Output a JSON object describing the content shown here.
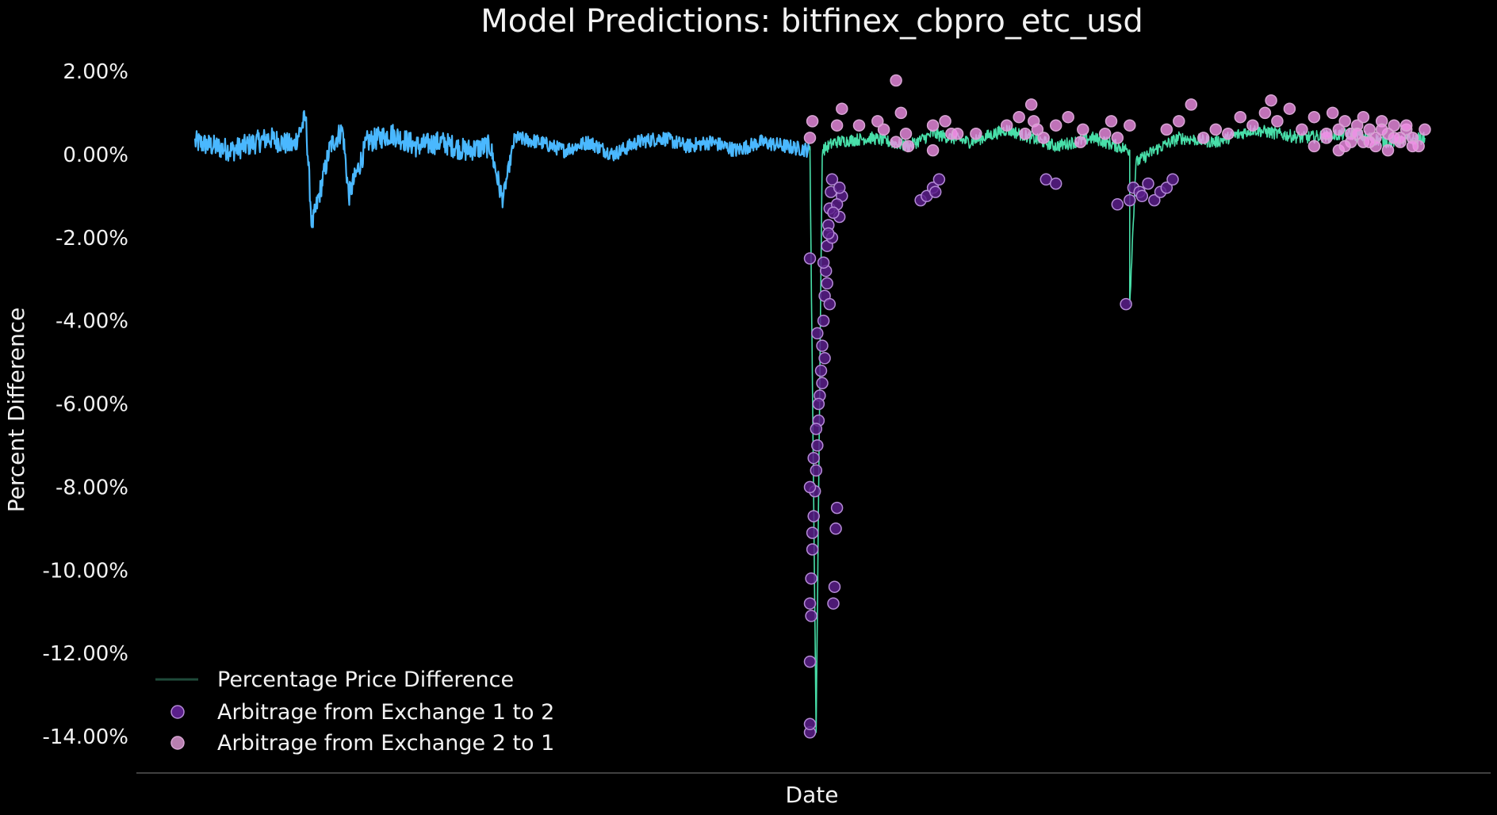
{
  "chart_data": {
    "type": "line",
    "title": "Model Predictions: bitfinex_cbpro_etc_usd",
    "xlabel": "Date",
    "ylabel": "Percent Difference",
    "ylim": [
      -14.6,
      2.3
    ],
    "yticks": [
      2,
      0,
      -2,
      -4,
      -6,
      -8,
      -10,
      -12,
      -14
    ],
    "ytick_labels": [
      "2.00%",
      "0.00%",
      "-2.00%",
      "-4.00%",
      "-6.00%",
      "-8.00%",
      "-10.00%",
      "-12.00%",
      "-14.00%"
    ],
    "grid": false,
    "legend_position": "lower-left",
    "colors": {
      "background": "#000000",
      "history_line": "#4ab8ff",
      "prediction_line": "#48dfa9",
      "arb_1_to_2": "#5a1f8a",
      "arb_2_to_1": "#f08fe6",
      "marker_edge": "#b48ad6"
    },
    "series": [
      {
        "name": "Percentage Price Difference",
        "type": "line",
        "segments": [
          {
            "color": "#4ab8ff",
            "x": [
              0,
              0.03,
              0.06,
              0.08,
              0.09,
              0.095,
              0.11,
              0.12,
              0.125,
              0.14,
              0.16,
              0.18,
              0.2,
              0.22,
              0.24,
              0.25,
              0.26,
              0.28,
              0.3,
              0.32,
              0.34,
              0.36,
              0.38,
              0.4,
              0.42,
              0.44,
              0.46,
              0.48,
              0.5
            ],
            "y": [
              0.3,
              0.1,
              0.4,
              0.2,
              0.9,
              -1.75,
              0.2,
              0.6,
              -1.0,
              0.3,
              0.5,
              0.2,
              0.3,
              0.1,
              0.2,
              -1.1,
              0.4,
              0.3,
              0.1,
              0.3,
              0.0,
              0.3,
              0.4,
              0.2,
              0.3,
              0.1,
              0.3,
              0.2,
              0.1
            ]
          },
          {
            "color": "#48dfa9",
            "x": [
              0.5,
              0.505,
              0.51,
              0.52,
              0.55,
              0.58,
              0.6,
              0.63,
              0.66,
              0.7,
              0.73,
              0.76,
              0.76,
              0.765,
              0.78,
              0.8,
              0.83,
              0.86,
              0.9,
              0.94,
              0.97,
              1.0
            ],
            "y": [
              0.2,
              -13.9,
              0.1,
              0.3,
              0.4,
              0.2,
              0.5,
              0.3,
              0.6,
              0.2,
              0.4,
              0.1,
              -3.6,
              -0.2,
              0.1,
              0.4,
              0.3,
              0.6,
              0.4,
              0.5,
              0.3,
              0.4
            ]
          }
        ]
      },
      {
        "name": "Arbitrage from Exchange 1 to 2",
        "type": "scatter",
        "x": [
          0.5,
          0.5,
          0.5,
          0.501,
          0.501,
          0.502,
          0.502,
          0.503,
          0.504,
          0.505,
          0.506,
          0.507,
          0.508,
          0.509,
          0.51,
          0.511,
          0.512,
          0.513,
          0.514,
          0.515,
          0.516,
          0.517,
          0.518,
          0.519,
          0.52,
          0.521,
          0.522,
          0.524,
          0.526,
          0.5,
          0.503,
          0.507,
          0.512,
          0.516,
          0.5,
          0.505,
          0.51,
          0.514,
          0.518,
          0.522,
          0.5,
          0.506,
          0.511,
          0.515,
          0.519,
          0.524,
          0.59,
          0.595,
          0.6,
          0.605,
          0.602,
          0.757,
          0.76,
          0.763,
          0.768,
          0.77,
          0.775,
          0.78,
          0.785,
          0.79,
          0.795,
          0.75,
          0.692,
          0.7
        ],
        "y": [
          -13.9,
          -13.7,
          -12.2,
          -11.1,
          -10.2,
          -9.5,
          -9.1,
          -8.7,
          -8.1,
          -7.6,
          -7.0,
          -6.4,
          -5.8,
          -5.2,
          -4.6,
          -4.0,
          -3.4,
          -2.8,
          -2.2,
          -1.7,
          -1.3,
          -0.9,
          -0.6,
          -10.8,
          -10.4,
          -9.0,
          -8.5,
          -1.5,
          -1.0,
          -10.8,
          -7.3,
          -6.0,
          -4.9,
          -3.6,
          -2.5,
          -6.6,
          -5.5,
          -3.1,
          -2.0,
          -1.2,
          -8.0,
          -4.3,
          -2.6,
          -1.9,
          -1.4,
          -0.8,
          -1.1,
          -1.0,
          -0.8,
          -0.6,
          -0.9,
          -3.6,
          -1.1,
          -0.8,
          -0.9,
          -1.0,
          -0.7,
          -1.1,
          -0.9,
          -0.8,
          -0.6,
          -1.2,
          -0.6,
          -0.7
        ]
      },
      {
        "name": "Arbitrage from Exchange 2 to 1",
        "type": "scatter",
        "x": [
          0.5,
          0.502,
          0.522,
          0.526,
          0.54,
          0.555,
          0.56,
          0.57,
          0.574,
          0.578,
          0.57,
          0.58,
          0.6,
          0.61,
          0.615,
          0.6,
          0.62,
          0.635,
          0.66,
          0.67,
          0.675,
          0.68,
          0.682,
          0.685,
          0.69,
          0.7,
          0.71,
          0.722,
          0.72,
          0.745,
          0.74,
          0.75,
          0.76,
          0.79,
          0.8,
          0.81,
          0.82,
          0.83,
          0.84,
          0.85,
          0.86,
          0.87,
          0.875,
          0.88,
          0.89,
          0.9,
          0.91,
          0.92,
          0.925,
          0.93,
          0.935,
          0.94,
          0.945,
          0.95,
          0.955,
          0.96,
          0.965,
          0.97,
          0.975,
          0.98,
          0.985,
          0.99,
          0.995,
          1.0,
          0.95,
          0.96,
          0.97,
          0.98,
          0.99,
          0.94,
          0.93,
          0.92,
          0.91,
          0.985,
          0.975,
          0.965,
          0.955,
          0.945,
          0.935
        ],
        "y": [
          0.4,
          0.8,
          0.7,
          1.1,
          0.7,
          0.8,
          0.6,
          1.78,
          1.0,
          0.5,
          0.3,
          0.2,
          0.7,
          0.8,
          0.5,
          0.1,
          0.5,
          0.5,
          0.7,
          0.9,
          0.5,
          1.2,
          0.8,
          0.6,
          0.4,
          0.7,
          0.9,
          0.6,
          0.3,
          0.8,
          0.5,
          0.4,
          0.7,
          0.6,
          0.8,
          1.2,
          0.4,
          0.6,
          0.5,
          0.9,
          0.7,
          1.0,
          1.3,
          0.8,
          1.1,
          0.6,
          0.9,
          0.4,
          1.0,
          0.6,
          0.8,
          0.5,
          0.7,
          0.9,
          0.6,
          0.4,
          0.8,
          0.5,
          0.7,
          0.3,
          0.6,
          0.4,
          0.2,
          0.6,
          0.3,
          0.2,
          0.1,
          0.4,
          0.2,
          0.3,
          0.1,
          0.5,
          0.2,
          0.7,
          0.4,
          0.6,
          0.3,
          0.5,
          0.2
        ]
      }
    ]
  }
}
